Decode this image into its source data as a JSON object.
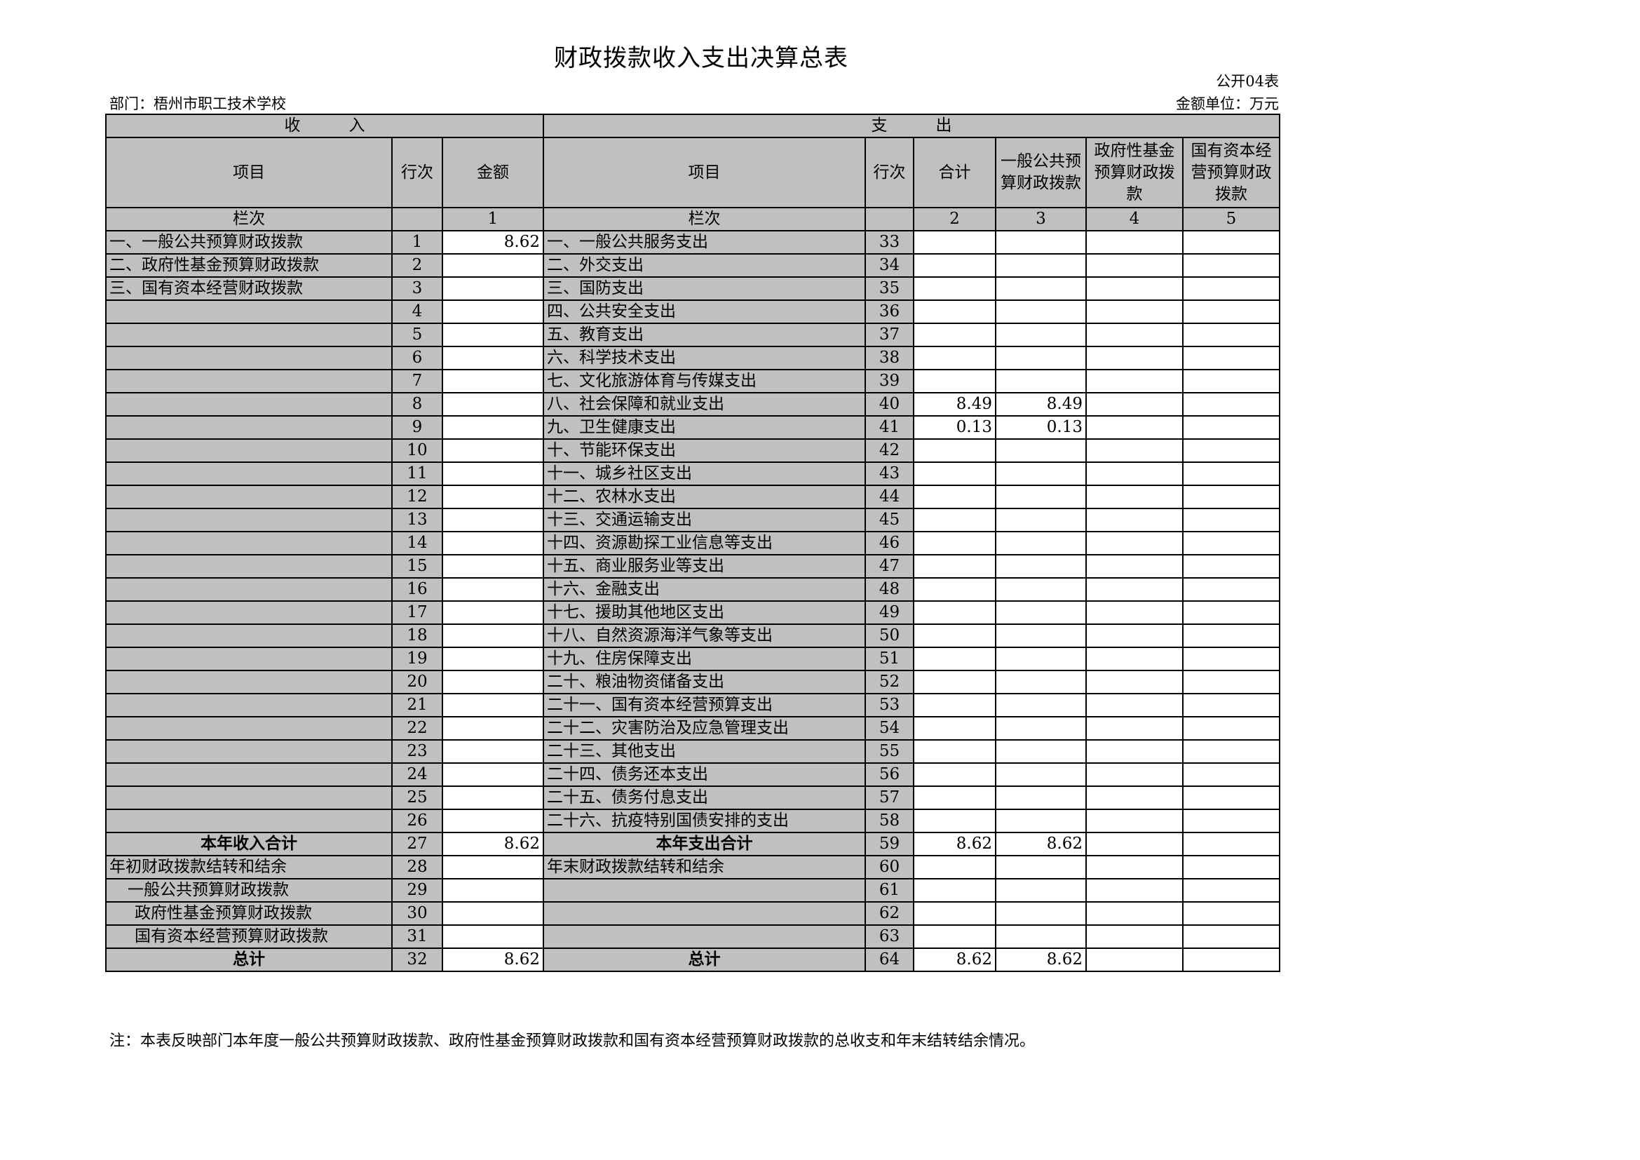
{
  "title": "财政拨款收入支出决算总表",
  "form_no": "公开04表",
  "department": "部门：梧州市职工技术学校",
  "unit": "金额单位：万元",
  "header": {
    "income": "收　　　入",
    "expenditure": "支　　　出",
    "in_item": "项目",
    "in_no": "行次",
    "in_amount": "金额",
    "out_item": "项目",
    "out_no": "行次",
    "total": "合计",
    "general": "一般公共预算财政拨款",
    "gov_fund": "政府性基金预算财政拨款",
    "state_capital": "国有资本经营预算财政拨款",
    "col_label": "栏次",
    "col_label2": "栏次",
    "col1": "1",
    "col2": "2",
    "col3": "3",
    "col4": "4",
    "col5": "5"
  },
  "rows": [
    {
      "in_item": "一、一般公共预算财政拨款",
      "in_no": "1",
      "in_amt": "8.62",
      "out_item": "一、一般公共服务支出",
      "out_no": "33",
      "v": [
        "",
        "",
        "",
        ""
      ]
    },
    {
      "in_item": "二、政府性基金预算财政拨款",
      "in_no": "2",
      "in_amt": "",
      "out_item": "二、外交支出",
      "out_no": "34",
      "v": [
        "",
        "",
        "",
        ""
      ]
    },
    {
      "in_item": "三、国有资本经营财政拨款",
      "in_no": "3",
      "in_amt": "",
      "out_item": "三、国防支出",
      "out_no": "35",
      "v": [
        "",
        "",
        "",
        ""
      ]
    },
    {
      "in_item": "",
      "in_no": "4",
      "in_amt": "",
      "out_item": "四、公共安全支出",
      "out_no": "36",
      "v": [
        "",
        "",
        "",
        ""
      ]
    },
    {
      "in_item": "",
      "in_no": "5",
      "in_amt": "",
      "out_item": "五、教育支出",
      "out_no": "37",
      "v": [
        "",
        "",
        "",
        ""
      ]
    },
    {
      "in_item": "",
      "in_no": "6",
      "in_amt": "",
      "out_item": "六、科学技术支出",
      "out_no": "38",
      "v": [
        "",
        "",
        "",
        ""
      ]
    },
    {
      "in_item": "",
      "in_no": "7",
      "in_amt": "",
      "out_item": "七、文化旅游体育与传媒支出",
      "out_no": "39",
      "v": [
        "",
        "",
        "",
        ""
      ]
    },
    {
      "in_item": "",
      "in_no": "8",
      "in_amt": "",
      "out_item": "八、社会保障和就业支出",
      "out_no": "40",
      "v": [
        "8.49",
        "8.49",
        "",
        ""
      ]
    },
    {
      "in_item": "",
      "in_no": "9",
      "in_amt": "",
      "out_item": "九、卫生健康支出",
      "out_no": "41",
      "v": [
        "0.13",
        "0.13",
        "",
        ""
      ]
    },
    {
      "in_item": "",
      "in_no": "10",
      "in_amt": "",
      "out_item": "十、节能环保支出",
      "out_no": "42",
      "v": [
        "",
        "",
        "",
        ""
      ]
    },
    {
      "in_item": "",
      "in_no": "11",
      "in_amt": "",
      "out_item": "十一、城乡社区支出",
      "out_no": "43",
      "v": [
        "",
        "",
        "",
        ""
      ]
    },
    {
      "in_item": "",
      "in_no": "12",
      "in_amt": "",
      "out_item": "十二、农林水支出",
      "out_no": "44",
      "v": [
        "",
        "",
        "",
        ""
      ]
    },
    {
      "in_item": "",
      "in_no": "13",
      "in_amt": "",
      "out_item": "十三、交通运输支出",
      "out_no": "45",
      "v": [
        "",
        "",
        "",
        ""
      ]
    },
    {
      "in_item": "",
      "in_no": "14",
      "in_amt": "",
      "out_item": "十四、资源勘探工业信息等支出",
      "out_no": "46",
      "v": [
        "",
        "",
        "",
        ""
      ]
    },
    {
      "in_item": "",
      "in_no": "15",
      "in_amt": "",
      "out_item": "十五、商业服务业等支出",
      "out_no": "47",
      "v": [
        "",
        "",
        "",
        ""
      ]
    },
    {
      "in_item": "",
      "in_no": "16",
      "in_amt": "",
      "out_item": "十六、金融支出",
      "out_no": "48",
      "v": [
        "",
        "",
        "",
        ""
      ]
    },
    {
      "in_item": "",
      "in_no": "17",
      "in_amt": "",
      "out_item": "十七、援助其他地区支出",
      "out_no": "49",
      "v": [
        "",
        "",
        "",
        ""
      ]
    },
    {
      "in_item": "",
      "in_no": "18",
      "in_amt": "",
      "out_item": "十八、自然资源海洋气象等支出",
      "out_no": "50",
      "v": [
        "",
        "",
        "",
        ""
      ]
    },
    {
      "in_item": "",
      "in_no": "19",
      "in_amt": "",
      "out_item": "十九、住房保障支出",
      "out_no": "51",
      "v": [
        "",
        "",
        "",
        ""
      ]
    },
    {
      "in_item": "",
      "in_no": "20",
      "in_amt": "",
      "out_item": "二十、粮油物资储备支出",
      "out_no": "52",
      "v": [
        "",
        "",
        "",
        ""
      ]
    },
    {
      "in_item": "",
      "in_no": "21",
      "in_amt": "",
      "out_item": "二十一、国有资本经营预算支出",
      "out_no": "53",
      "v": [
        "",
        "",
        "",
        ""
      ]
    },
    {
      "in_item": "",
      "in_no": "22",
      "in_amt": "",
      "out_item": "二十二、灾害防治及应急管理支出",
      "out_no": "54",
      "v": [
        "",
        "",
        "",
        ""
      ]
    },
    {
      "in_item": "",
      "in_no": "23",
      "in_amt": "",
      "out_item": "二十三、其他支出",
      "out_no": "55",
      "v": [
        "",
        "",
        "",
        ""
      ]
    },
    {
      "in_item": "",
      "in_no": "24",
      "in_amt": "",
      "out_item": "二十四、债务还本支出",
      "out_no": "56",
      "v": [
        "",
        "",
        "",
        ""
      ]
    },
    {
      "in_item": "",
      "in_no": "25",
      "in_amt": "",
      "out_item": "二十五、债务付息支出",
      "out_no": "57",
      "v": [
        "",
        "",
        "",
        ""
      ]
    },
    {
      "in_item": "",
      "in_no": "26",
      "in_amt": "",
      "out_item": "二十六、抗疫特别国债安排的支出",
      "out_no": "58",
      "v": [
        "",
        "",
        "",
        ""
      ]
    },
    {
      "in_item": "本年收入合计",
      "in_no": "27",
      "in_amt": "8.62",
      "out_item": "本年支出合计",
      "out_no": "59",
      "v": [
        "8.62",
        "8.62",
        "",
        ""
      ],
      "style": "bold"
    },
    {
      "in_item": "年初财政拨款结转和结余",
      "in_no": "28",
      "in_amt": "",
      "out_item": "年末财政拨款结转和结余",
      "out_no": "60",
      "v": [
        "",
        "",
        "",
        ""
      ]
    },
    {
      "in_item": "一般公共预算财政拨款",
      "in_no": "29",
      "in_amt": "",
      "out_item": "",
      "out_no": "61",
      "v": [
        "",
        "",
        "",
        ""
      ],
      "style": "ind1"
    },
    {
      "in_item": "政府性基金预算财政拨款",
      "in_no": "30",
      "in_amt": "",
      "out_item": "",
      "out_no": "62",
      "v": [
        "",
        "",
        "",
        ""
      ],
      "style": "ind2"
    },
    {
      "in_item": "国有资本经营预算财政拨款",
      "in_no": "31",
      "in_amt": "",
      "out_item": "",
      "out_no": "63",
      "v": [
        "",
        "",
        "",
        ""
      ],
      "style": "ind2"
    },
    {
      "in_item": "总计",
      "in_no": "32",
      "in_amt": "8.62",
      "out_item": "总计",
      "out_no": "64",
      "v": [
        "8.62",
        "8.62",
        "",
        ""
      ],
      "style": "bold"
    }
  ],
  "note": "注：本表反映部门本年度一般公共预算财政拨款、政府性基金预算财政拨款和国有资本经营预算财政拨款的总收支和年末结转结余情况。",
  "colors": {
    "label_cell": "#c0c0c0",
    "value_cell": "#ffffff",
    "border": "#000000"
  }
}
